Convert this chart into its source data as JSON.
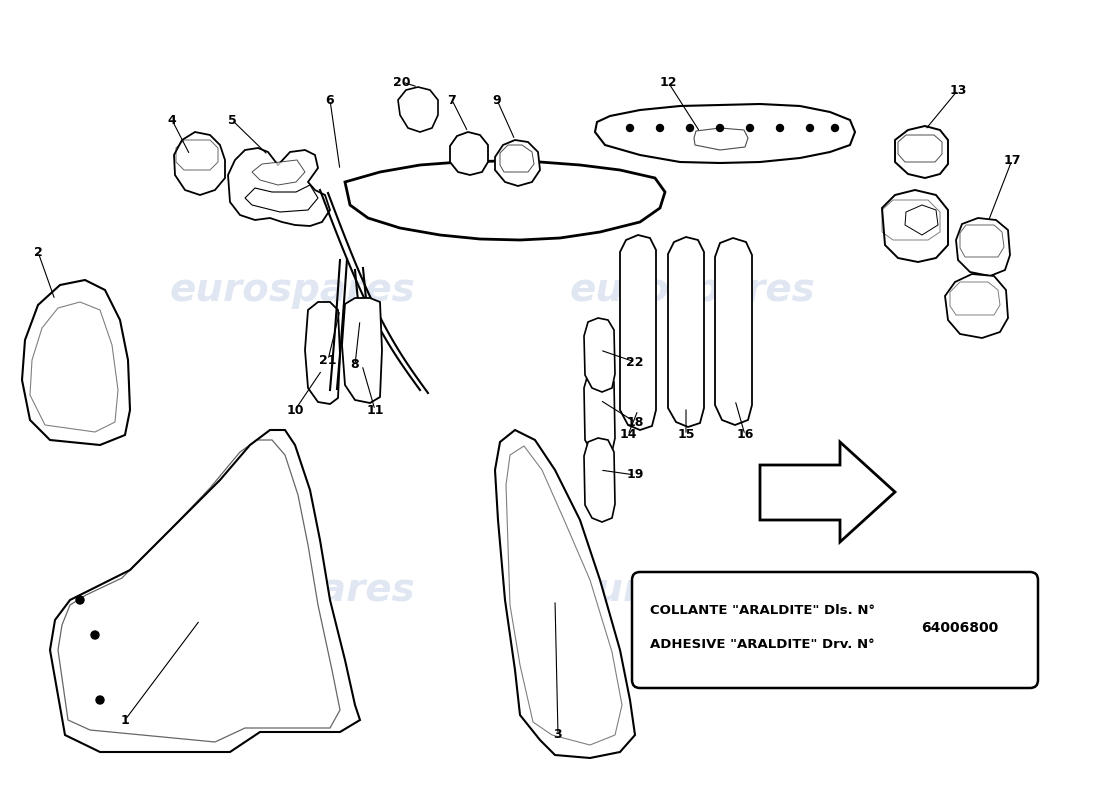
{
  "bg_color": "#ffffff",
  "wm_color": "#c8d4e8",
  "wm_text": "eurospares",
  "line_color": "#000000",
  "box_text_line1": "COLLANTE \"ARALDITE\" Dls. N°",
  "box_text_line2": "ADHESIVE \"ARALDITE\" Drv. N°",
  "box_number": "64006800",
  "fig_w": 11.0,
  "fig_h": 8.0,
  "dpi": 100
}
